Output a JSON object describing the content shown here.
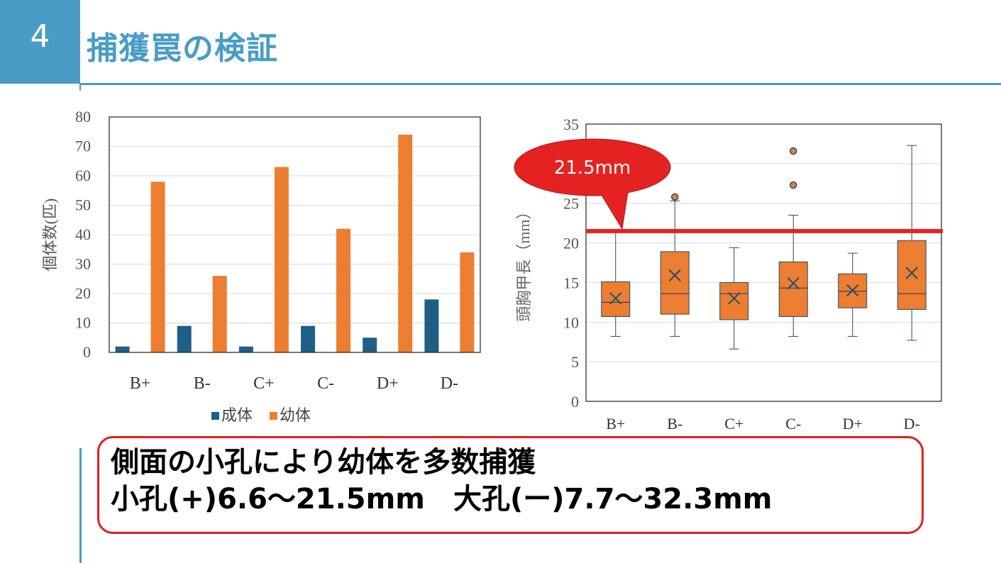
{
  "slide": {
    "number": "4",
    "title": "捕獲罠の検証"
  },
  "colors": {
    "accent": "#4a9cc6",
    "adult": "#1f5f85",
    "juvenile": "#ed7d31",
    "threshold_line": "#e52222",
    "callout": "#e52222"
  },
  "chart_data": [
    {
      "type": "bar",
      "categories": [
        "B+",
        "B-",
        "C+",
        "C-",
        "D+",
        "D-"
      ],
      "series": [
        {
          "name": "成体",
          "values": [
            2,
            9,
            2,
            9,
            5,
            18
          ]
        },
        {
          "name": "幼体",
          "values": [
            58,
            26,
            63,
            42,
            74,
            34
          ]
        }
      ],
      "ylabel": "個体数(匹)",
      "ylim": [
        0,
        80
      ],
      "yticks": [
        0,
        10,
        20,
        30,
        40,
        50,
        60,
        70,
        80
      ],
      "grid": true,
      "legend": "bottom"
    },
    {
      "type": "box",
      "categories": [
        "B+",
        "B-",
        "C+",
        "C-",
        "D+",
        "D-"
      ],
      "boxes": [
        {
          "min": 8.2,
          "q1": 10.7,
          "median": 12.5,
          "q3": 15.1,
          "max": 21.5,
          "mean": 13.0,
          "outliers": []
        },
        {
          "min": 8.2,
          "q1": 11.0,
          "median": 13.6,
          "q3": 18.9,
          "max": 25.3,
          "mean": 15.9,
          "outliers": [
            25.8
          ]
        },
        {
          "min": 6.6,
          "q1": 10.3,
          "median": 13.6,
          "q3": 15.0,
          "max": 19.4,
          "mean": 13.0,
          "outliers": []
        },
        {
          "min": 8.2,
          "q1": 10.7,
          "median": 14.3,
          "q3": 17.6,
          "max": 23.5,
          "mean": 14.9,
          "outliers": [
            31.6,
            27.3
          ]
        },
        {
          "min": 8.2,
          "q1": 11.8,
          "median": 13.9,
          "q3": 16.1,
          "max": 18.7,
          "mean": 14.0,
          "outliers": []
        },
        {
          "min": 7.7,
          "q1": 11.6,
          "median": 13.6,
          "q3": 20.3,
          "max": 32.3,
          "mean": 16.2,
          "outliers": []
        }
      ],
      "ylabel": "頭胸甲長（mm）",
      "ylim": [
        0,
        35
      ],
      "yticks": [
        0,
        5,
        10,
        15,
        20,
        25,
        30,
        35
      ],
      "grid": true,
      "threshold": {
        "value": 21.5,
        "label": "21.5mm"
      }
    }
  ],
  "summary": {
    "line1": "側面の小孔により幼体を多数捕獲",
    "line2": "小孔(+)6.6～21.5mm　大孔(ー)7.7～32.3mm"
  }
}
